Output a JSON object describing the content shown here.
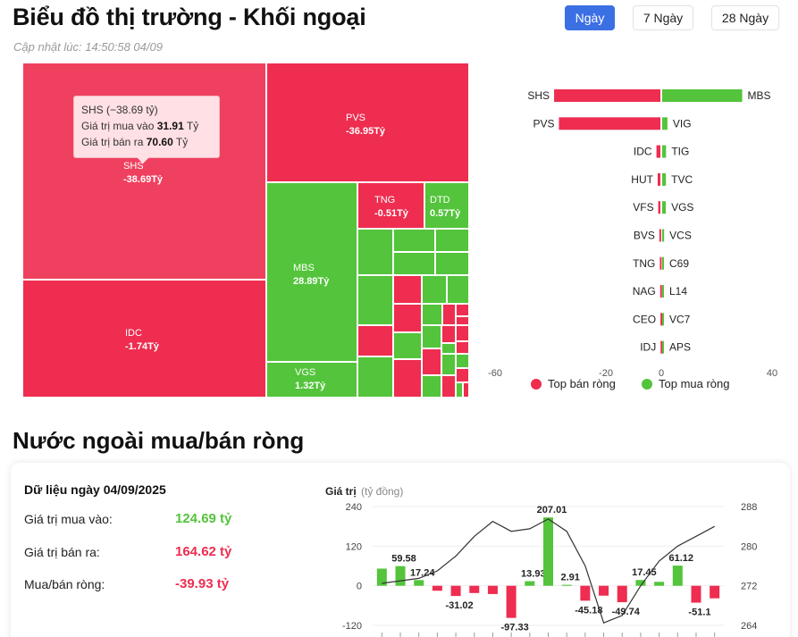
{
  "header": {
    "title": "Biểu đồ thị trường - Khối ngoại",
    "updated": "Cập nhật lúc: 14:50:58 04/09",
    "ranges": [
      "Ngày",
      "7 Ngày",
      "28 Ngày"
    ],
    "active_range": "Ngày"
  },
  "treemap": {
    "tiles": [
      {
        "ticker": "SHS",
        "value": "-38.69Tỷ",
        "color": "red"
      },
      {
        "ticker": "PVS",
        "value": "-36.95Tỷ",
        "color": "red"
      },
      {
        "ticker": "IDC",
        "value": "-1.74Tỷ",
        "color": "red"
      },
      {
        "ticker": "MBS",
        "value": "28.89Tỷ",
        "color": "green"
      },
      {
        "ticker": "TNG",
        "value": "-0.51Tỷ",
        "color": "red"
      },
      {
        "ticker": "DTD",
        "value": "0.57Tỷ",
        "color": "green"
      },
      {
        "ticker": "VGS",
        "value": "1.32Tỷ",
        "color": "green"
      }
    ],
    "tooltip": {
      "title": "SHS (−38.69 tỷ)",
      "buy_label": "Giá trị mua vào",
      "buy_value": "31.91",
      "buy_unit": "Tỷ",
      "sell_label": "Giá trị bán ra",
      "sell_value": "70.60",
      "sell_unit": "Tỷ"
    }
  },
  "top_chart": {
    "rows": [
      {
        "sell": "SHS",
        "buy": "MBS",
        "sell_val": -38.69,
        "buy_val": 28.89
      },
      {
        "sell": "PVS",
        "buy": "VIG",
        "sell_val": -36.95,
        "buy_val": 1.9
      },
      {
        "sell": "IDC",
        "buy": "TIG",
        "sell_val": -1.74,
        "buy_val": 1.4
      },
      {
        "sell": "HUT",
        "buy": "TVC",
        "sell_val": -1.3,
        "buy_val": 1.35
      },
      {
        "sell": "VFS",
        "buy": "VGS",
        "sell_val": -1.1,
        "buy_val": 1.32
      },
      {
        "sell": "BVS",
        "buy": "VCS",
        "sell_val": -0.7,
        "buy_val": 0.7
      },
      {
        "sell": "TNG",
        "buy": "C69",
        "sell_val": -0.51,
        "buy_val": 0.6
      },
      {
        "sell": "NAG",
        "buy": "L14",
        "sell_val": -0.4,
        "buy_val": 0.58
      },
      {
        "sell": "CEO",
        "buy": "VC7",
        "sell_val": -0.3,
        "buy_val": 0.57
      },
      {
        "sell": "IDJ",
        "buy": "APS",
        "sell_val": -0.25,
        "buy_val": 0.5
      }
    ],
    "axis_ticks": [
      -60,
      -20,
      0,
      40
    ],
    "legend_sell": "Top bán ròng",
    "legend_buy": "Top mua ròng",
    "color_sell": "#ee2d50",
    "color_buy": "#53c43b"
  },
  "section": {
    "title": "Nước ngoài mua/bán ròng",
    "date_label": "Dữ liệu ngày 04/09/2025",
    "buy_label": "Giá trị mua vào:",
    "buy_value": "124.69 tỷ",
    "sell_label": "Giá trị bán ra:",
    "sell_value": "164.62 tỷ",
    "net_label": "Mua/bán ròng:",
    "net_value": "-39.93 tỷ"
  },
  "chart_data": {
    "type": "bar",
    "ylabel": "Giá trị",
    "ylabel_unit": "(tỷ đồng)",
    "ylim": [
      -120,
      240
    ],
    "left_ticks": [
      240,
      120,
      0,
      -120
    ],
    "right_ticks": [
      288,
      280,
      272,
      264
    ],
    "right_ylim": [
      264,
      288
    ],
    "series": [
      {
        "values": [
          52,
          59.58,
          17.24,
          -15,
          -31.02,
          -22,
          -25,
          -97.33,
          13.93,
          207.01,
          2.91,
          -45.18,
          -30,
          -49.74,
          17.45,
          12,
          61.12,
          -51.1,
          -38
        ]
      },
      {
        "values": [
          272.5,
          273,
          273.5,
          275,
          278,
          282,
          285,
          283,
          283.5,
          285.5,
          283,
          276,
          264.5,
          266,
          272,
          277,
          280,
          282,
          284
        ]
      }
    ],
    "data_labels": [
      "",
      "59.58",
      "17.24",
      "",
      "-31.02",
      "",
      "",
      "-97.33",
      "13.93",
      "207.01",
      "2.91",
      "-45.18",
      "",
      "-49.74",
      "17.45",
      "",
      "61.12",
      "-51.1",
      ""
    ]
  }
}
